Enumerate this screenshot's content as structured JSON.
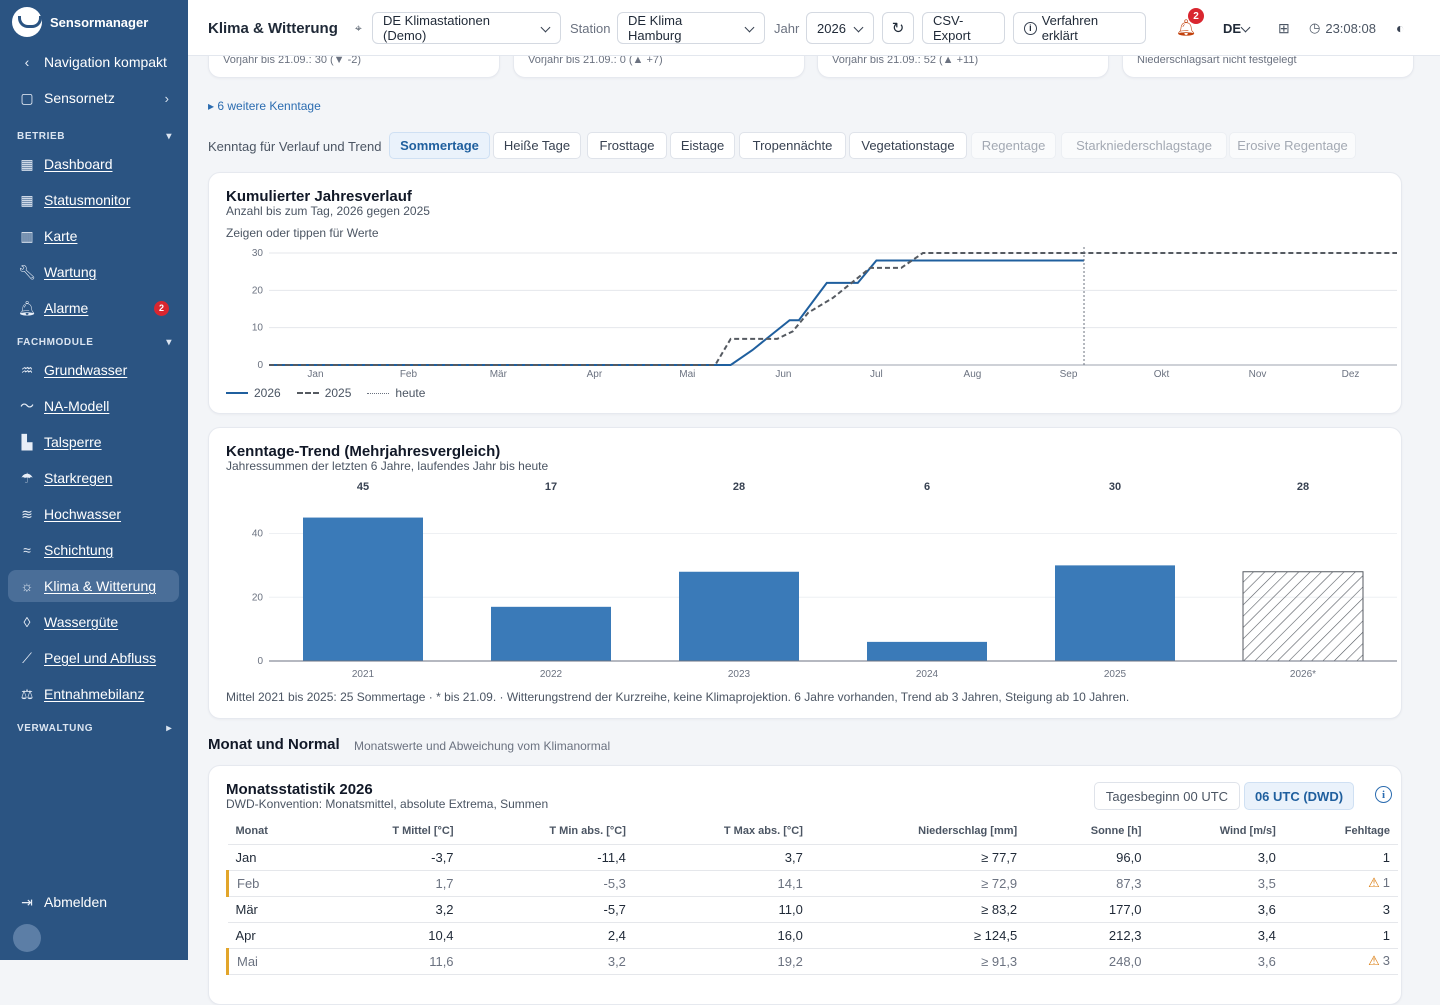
{
  "app": {
    "name": "Sensormanager"
  },
  "sidebar": {
    "compact": "Navigation kompakt",
    "sensornetz": "Sensornetz",
    "sections": {
      "betrieb": "BETRIEB",
      "fachmodule": "FACHMODULE",
      "verwaltung": "VERWALTUNG"
    },
    "betrieb_items": [
      {
        "label": "Dashboard",
        "icon": "dashboard-icon"
      },
      {
        "label": "Statusmonitor",
        "icon": "grid-icon"
      },
      {
        "label": "Karte",
        "icon": "map-icon"
      },
      {
        "label": "Wartung",
        "icon": "wrench-icon"
      },
      {
        "label": "Alarme",
        "icon": "bell-icon",
        "badge": "2"
      }
    ],
    "fach_items": [
      {
        "label": "Grundwasser",
        "icon": "groundwater-icon"
      },
      {
        "label": "NA-Modell",
        "icon": "trend-icon"
      },
      {
        "label": "Talsperre",
        "icon": "dam-icon"
      },
      {
        "label": "Starkregen",
        "icon": "rain-icon"
      },
      {
        "label": "Hochwasser",
        "icon": "flood-icon"
      },
      {
        "label": "Schichtung",
        "icon": "layers-icon"
      },
      {
        "label": "Klima & Witterung",
        "icon": "sun-icon",
        "active": true
      },
      {
        "label": "Wassergüte",
        "icon": "drop-icon"
      },
      {
        "label": "Pegel und Abfluss",
        "icon": "gauge-icon"
      },
      {
        "label": "Entnahmebilanz",
        "icon": "balance-icon"
      }
    ],
    "logout": "Abmelden"
  },
  "topbar": {
    "title": "Klima & Witterung",
    "network_select": "DE Klimastationen (Demo)",
    "station_label": "Station",
    "station_select": "DE Klima Hamburg",
    "year_label": "Jahr",
    "year_select": "2026",
    "csv_export": "CSV-Export",
    "explain": "Verfahren erklärt",
    "notifications": "2",
    "language": "DE",
    "time": "23:08:08"
  },
  "stat_cards": [
    "Vorjahr bis 21.09.: 30 (▼ -2)",
    "Vorjahr bis 21.09.: 0 (▲ +7)",
    "Vorjahr bis 21.09.: 52 (▲ +11)",
    "Niederschlagsart nicht festgelegt"
  ],
  "more_link": "▸ 6 weitere Kenntage",
  "kenntag": {
    "label": "Kenntag für Verlauf und Trend",
    "chips": [
      {
        "label": "Sommertage",
        "state": "active"
      },
      {
        "label": "Heiße Tage",
        "state": "normal"
      },
      {
        "label": "Frosttage",
        "state": "normal"
      },
      {
        "label": "Eistage",
        "state": "normal"
      },
      {
        "label": "Tropennächte",
        "state": "normal"
      },
      {
        "label": "Vegetationstage",
        "state": "normal"
      },
      {
        "label": "Regentage",
        "state": "disabled"
      },
      {
        "label": "Starkniederschlagstage",
        "state": "disabled"
      },
      {
        "label": "Erosive Regentage",
        "state": "disabled"
      }
    ]
  },
  "colors": {
    "primary": "#1f5f9e",
    "bar": "#3a7ab8",
    "prev_year": "#555a61",
    "warning": "#e2a52a"
  },
  "chart_data": [
    {
      "type": "line",
      "title": "Kumulierter Jahresverlauf",
      "subtitle": "Anzahl bis zum Tag, 2026 gegen 2025",
      "hint": "Zeigen oder tippen für Werte",
      "x_ticks": [
        "Jan",
        "Feb",
        "Mär",
        "Apr",
        "Mai",
        "Jun",
        "Jul",
        "Aug",
        "Sep",
        "Okt",
        "Nov",
        "Dez"
      ],
      "y_ticks": [
        0,
        10,
        20,
        30
      ],
      "ylim": [
        0,
        30
      ],
      "xlim_days": [
        1,
        365
      ],
      "today_day": 264,
      "series": [
        {
          "name": "2026",
          "style": "solid",
          "points": [
            [
              1,
              0
            ],
            [
              150,
              0
            ],
            [
              157,
              4
            ],
            [
              163,
              8
            ],
            [
              169,
              12
            ],
            [
              172,
              12
            ],
            [
              181,
              22
            ],
            [
              191,
              22
            ],
            [
              197,
              28
            ],
            [
              264,
              28
            ]
          ]
        },
        {
          "name": "2025",
          "style": "dashed",
          "points": [
            [
              1,
              0
            ],
            [
              145,
              0
            ],
            [
              150,
              7
            ],
            [
              165,
              7
            ],
            [
              170,
              9
            ],
            [
              175,
              14
            ],
            [
              183,
              18
            ],
            [
              195,
              26
            ],
            [
              205,
              26
            ],
            [
              212,
              30
            ],
            [
              365,
              30
            ]
          ]
        }
      ],
      "legend": [
        "2026",
        "2025",
        "heute"
      ]
    },
    {
      "type": "bar",
      "title": "Kenntage-Trend (Mehrjahresvergleich)",
      "subtitle": "Jahressummen der letzten 6 Jahre, laufendes Jahr bis heute",
      "categories": [
        "2021",
        "2022",
        "2023",
        "2024",
        "2025",
        "2026*"
      ],
      "values": [
        45,
        17,
        28,
        6,
        30,
        28
      ],
      "partial_last": true,
      "y_ticks": [
        0,
        20,
        40
      ],
      "ylim": [
        0,
        48
      ],
      "footnote": "Mittel 2021 bis 2025: 25 Sommertage · * bis 21.09. · Witterungstrend der Kurzreihe, keine Klimaprojektion. 6 Jahre vorhanden, Trend ab 3 Jahren, Steigung ab 10 Jahren."
    }
  ],
  "monthly": {
    "section_title": "Monat und Normal",
    "section_sub": "Monatswerte und Abweichung vom Klimanormal",
    "card_title": "Monatsstatistik 2026",
    "card_sub": "DWD-Konvention: Monatsmittel, absolute Extrema, Summen",
    "toggle_off": "Tagesbeginn 00 UTC",
    "toggle_on": "06 UTC (DWD)",
    "columns": [
      "Monat",
      "T Mittel [°C]",
      "T Min abs. [°C]",
      "T Max abs. [°C]",
      "Niederschlag [mm]",
      "Sonne [h]",
      "Wind [m/s]",
      "Fehltage"
    ],
    "rows": [
      {
        "cells": [
          "Jan",
          "-3,7",
          "-11,4",
          "3,7",
          "≥ 77,7",
          "96,0",
          "3,0",
          "1"
        ],
        "warn": false
      },
      {
        "cells": [
          "Feb",
          "1,7",
          "-5,3",
          "14,1",
          "≥ 72,9",
          "87,3",
          "3,5",
          "1"
        ],
        "warn": true
      },
      {
        "cells": [
          "Mär",
          "3,2",
          "-5,7",
          "11,0",
          "≥ 83,2",
          "177,0",
          "3,6",
          "3"
        ],
        "warn": false
      },
      {
        "cells": [
          "Apr",
          "10,4",
          "2,4",
          "16,0",
          "≥ 124,5",
          "212,3",
          "3,4",
          "1"
        ],
        "warn": false
      },
      {
        "cells": [
          "Mai",
          "11,6",
          "3,2",
          "19,2",
          "≥ 91,3",
          "248,0",
          "3,6",
          "3"
        ],
        "warn": true
      }
    ]
  }
}
